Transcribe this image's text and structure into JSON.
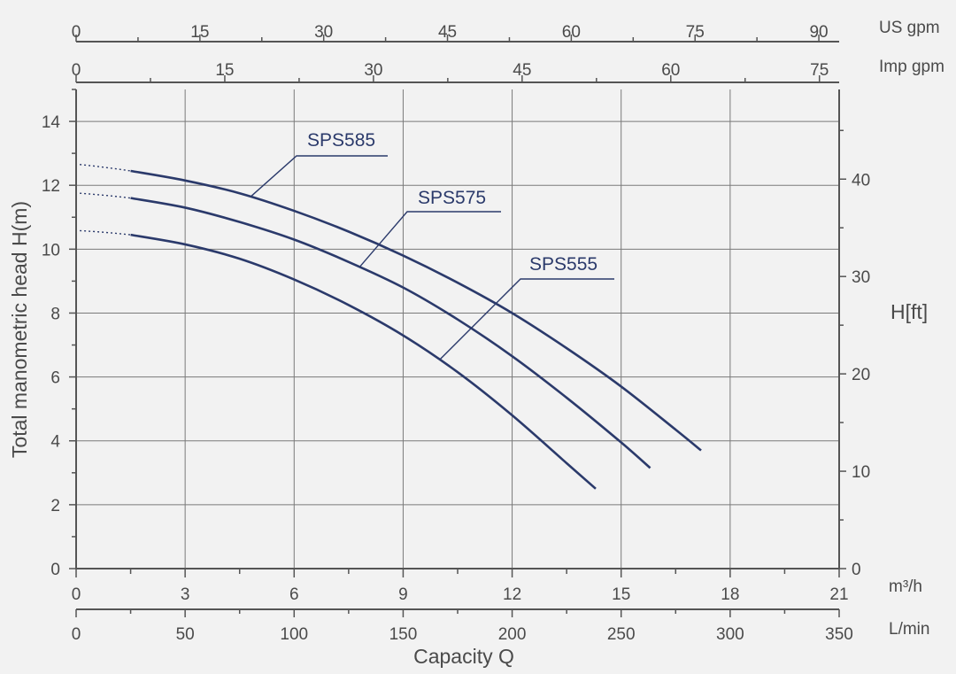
{
  "chart_data": {
    "type": "line",
    "title": "",
    "xlabel": "Capacity Q",
    "ylabel": "Total manometric head H(m)",
    "ylabel_right": "H[ft]",
    "grid": true,
    "xlim": [
      0,
      21
    ],
    "ylim": [
      0,
      15
    ],
    "x_unit": "m³/h",
    "x_ticks": [
      0,
      3,
      6,
      9,
      12,
      15,
      18,
      21
    ],
    "y_ticks": [
      0,
      2,
      4,
      6,
      8,
      10,
      12,
      14
    ],
    "secondary_axes": {
      "lmin": {
        "unit": "L/min",
        "ticks": [
          0,
          50,
          100,
          150,
          200,
          250,
          300,
          350
        ],
        "max": 350
      },
      "usgpm": {
        "unit": "US gpm",
        "ticks": [
          0,
          15,
          30,
          45,
          60,
          75,
          90
        ],
        "max": 92.46
      },
      "impgpm": {
        "unit": "Imp gpm",
        "ticks": [
          0,
          15,
          30,
          45,
          60,
          75
        ],
        "max": 76.99
      },
      "ft": {
        "unit": "H[ft]",
        "ticks": [
          0,
          10,
          20,
          30,
          40
        ],
        "max": 49.21
      }
    },
    "series": [
      {
        "name": "SPS585",
        "x": [
          1.5,
          3,
          4.5,
          6,
          7.5,
          9,
          10.5,
          12,
          13.5,
          15,
          16.5,
          17.2
        ],
        "y": [
          12.45,
          12.15,
          11.75,
          11.2,
          10.55,
          9.8,
          8.95,
          8.0,
          6.9,
          5.7,
          4.35,
          3.7
        ],
        "dotted_start": {
          "x": 0.1,
          "y": 12.65
        }
      },
      {
        "name": "SPS575",
        "x": [
          1.5,
          3,
          4.5,
          6,
          7.5,
          9,
          10.5,
          12,
          13.5,
          15,
          15.8
        ],
        "y": [
          11.6,
          11.3,
          10.85,
          10.3,
          9.6,
          8.8,
          7.8,
          6.65,
          5.35,
          3.95,
          3.15
        ],
        "dotted_start": {
          "x": 0.1,
          "y": 11.75
        }
      },
      {
        "name": "SPS555",
        "x": [
          1.5,
          3,
          4.5,
          6,
          7.5,
          9,
          10.5,
          12,
          13.5,
          14.3
        ],
        "y": [
          10.45,
          10.15,
          9.7,
          9.05,
          8.25,
          7.3,
          6.15,
          4.8,
          3.3,
          2.5
        ],
        "dotted_start": {
          "x": 0.1,
          "y": 10.58
        }
      }
    ]
  }
}
